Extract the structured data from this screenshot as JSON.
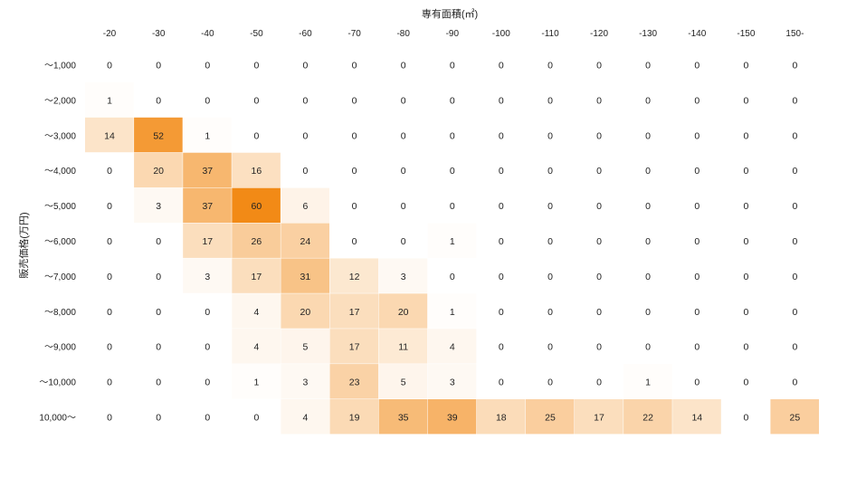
{
  "chart_data": {
    "type": "heatmap",
    "xlabel": "専有面積(㎡)",
    "ylabel": "販売価格(万円)",
    "x_categories": [
      "-20",
      "-30",
      "-40",
      "-50",
      "-60",
      "-70",
      "-80",
      "-90",
      "-100",
      "-110",
      "-120",
      "-130",
      "-140",
      "-150",
      "150-"
    ],
    "y_categories": [
      "～1,000",
      "～2,000",
      "～3,000",
      "～4,000",
      "～5,000",
      "～6,000",
      "～7,000",
      "～8,000",
      "～9,000",
      "～10,000",
      "10,000～"
    ],
    "values": [
      [
        0,
        0,
        0,
        0,
        0,
        0,
        0,
        0,
        0,
        0,
        0,
        0,
        0,
        0,
        0
      ],
      [
        1,
        0,
        0,
        0,
        0,
        0,
        0,
        0,
        0,
        0,
        0,
        0,
        0,
        0,
        0
      ],
      [
        14,
        52,
        1,
        0,
        0,
        0,
        0,
        0,
        0,
        0,
        0,
        0,
        0,
        0,
        0
      ],
      [
        0,
        20,
        37,
        16,
        0,
        0,
        0,
        0,
        0,
        0,
        0,
        0,
        0,
        0,
        0
      ],
      [
        0,
        3,
        37,
        60,
        6,
        0,
        0,
        0,
        0,
        0,
        0,
        0,
        0,
        0,
        0
      ],
      [
        0,
        0,
        17,
        26,
        24,
        0,
        0,
        1,
        0,
        0,
        0,
        0,
        0,
        0,
        0
      ],
      [
        0,
        0,
        3,
        17,
        31,
        12,
        3,
        0,
        0,
        0,
        0,
        0,
        0,
        0,
        0
      ],
      [
        0,
        0,
        0,
        4,
        20,
        17,
        20,
        1,
        0,
        0,
        0,
        0,
        0,
        0,
        0
      ],
      [
        0,
        0,
        0,
        4,
        5,
        17,
        11,
        4,
        0,
        0,
        0,
        0,
        0,
        0,
        0
      ],
      [
        0,
        0,
        0,
        1,
        3,
        23,
        5,
        3,
        0,
        0,
        0,
        1,
        0,
        0,
        0
      ],
      [
        0,
        0,
        0,
        0,
        4,
        19,
        35,
        39,
        18,
        25,
        17,
        22,
        14,
        0,
        25
      ]
    ],
    "color_scale": {
      "min": 0,
      "max": 60,
      "low_color": "#ffffff",
      "high_color": "#f28a16"
    },
    "grid": false,
    "legend": "none"
  }
}
